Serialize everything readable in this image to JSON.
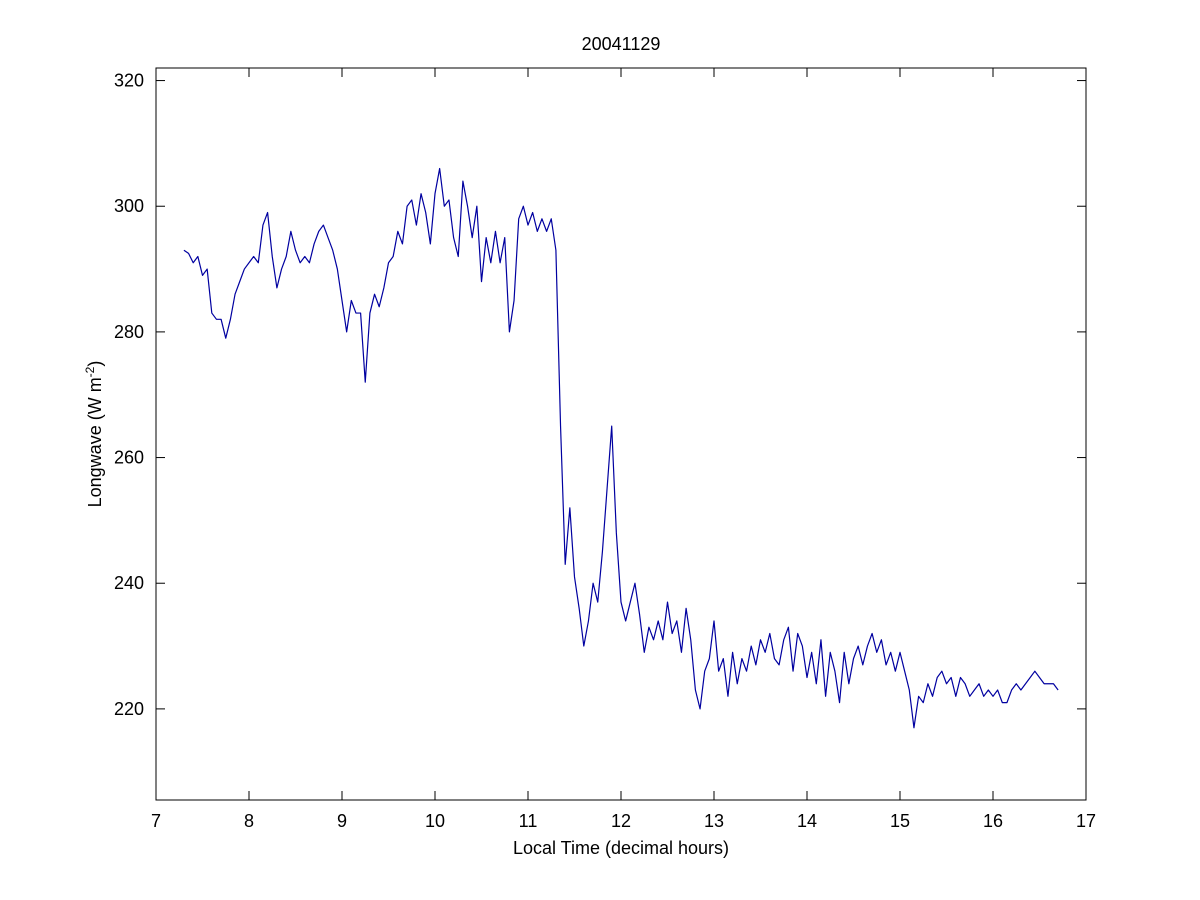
{
  "chart_data": {
    "type": "line",
    "title": "20041129",
    "xlabel": "Local Time (decimal hours)",
    "ylabel": [
      "Longwave (W m",
      "-2",
      ")"
    ],
    "xlim": [
      7,
      17
    ],
    "ylim": [
      205.5,
      322
    ],
    "xticks": [
      7,
      8,
      9,
      10,
      11,
      12,
      13,
      14,
      15,
      16,
      17
    ],
    "yticks": [
      220,
      240,
      260,
      280,
      300,
      320
    ],
    "grid": false,
    "series": [
      {
        "color": "#0000a0",
        "x": [
          7.3,
          7.35,
          7.4,
          7.45,
          7.5,
          7.55,
          7.6,
          7.65,
          7.7,
          7.75,
          7.8,
          7.85,
          7.9,
          7.95,
          8,
          8.05,
          8.1,
          8.15,
          8.2,
          8.25,
          8.3,
          8.35,
          8.4,
          8.45,
          8.5,
          8.55,
          8.6,
          8.65,
          8.7,
          8.75,
          8.8,
          8.85,
          8.9,
          8.95,
          9,
          9.05,
          9.1,
          9.15,
          9.2,
          9.25,
          9.3,
          9.35,
          9.4,
          9.45,
          9.5,
          9.55,
          9.6,
          9.65,
          9.7,
          9.75,
          9.8,
          9.85,
          9.9,
          9.95,
          10,
          10.05,
          10.1,
          10.15,
          10.2,
          10.25,
          10.3,
          10.35,
          10.4,
          10.45,
          10.5,
          10.55,
          10.6,
          10.65,
          10.7,
          10.75,
          10.8,
          10.85,
          10.9,
          10.95,
          11,
          11.05,
          11.1,
          11.15,
          11.2,
          11.25,
          11.3,
          11.35,
          11.4,
          11.45,
          11.5,
          11.55,
          11.6,
          11.65,
          11.7,
          11.75,
          11.8,
          11.85,
          11.9,
          11.95,
          12,
          12.05,
          12.1,
          12.15,
          12.2,
          12.25,
          12.3,
          12.35,
          12.4,
          12.45,
          12.5,
          12.55,
          12.6,
          12.65,
          12.7,
          12.75,
          12.8,
          12.85,
          12.9,
          12.95,
          13,
          13.05,
          13.1,
          13.15,
          13.2,
          13.25,
          13.3,
          13.35,
          13.4,
          13.45,
          13.5,
          13.55,
          13.6,
          13.65,
          13.7,
          13.75,
          13.8,
          13.85,
          13.9,
          13.95,
          14,
          14.05,
          14.1,
          14.15,
          14.2,
          14.25,
          14.3,
          14.35,
          14.4,
          14.45,
          14.5,
          14.55,
          14.6,
          14.65,
          14.7,
          14.75,
          14.8,
          14.85,
          14.9,
          14.95,
          15,
          15.05,
          15.1,
          15.15,
          15.2,
          15.25,
          15.3,
          15.35,
          15.4,
          15.45,
          15.5,
          15.55,
          15.6,
          15.65,
          15.7,
          15.75,
          15.8,
          15.85,
          15.9,
          15.95,
          16,
          16.05,
          16.1,
          16.15,
          16.2,
          16.25,
          16.3,
          16.35,
          16.4,
          16.45,
          16.5,
          16.55,
          16.6,
          16.65,
          16.7
        ],
        "values": [
          293,
          292.5,
          291,
          292,
          289,
          290,
          283,
          282,
          282,
          279,
          282,
          286,
          288,
          290,
          291,
          292,
          291,
          297,
          299,
          292,
          287,
          290,
          292,
          296,
          293,
          291,
          292,
          291,
          294,
          296,
          297,
          295,
          293,
          290,
          285,
          280,
          285,
          283,
          283,
          272,
          283,
          286,
          284,
          287,
          291,
          292,
          296,
          294,
          300,
          301,
          297,
          302,
          299,
          294,
          302,
          306,
          300,
          301,
          295,
          292,
          304,
          300,
          295,
          300,
          288,
          295,
          291,
          296,
          291,
          295,
          280,
          285,
          298,
          300,
          297,
          299,
          296,
          298,
          296,
          298,
          293,
          265,
          243,
          252,
          241,
          236,
          230,
          234,
          240,
          237,
          245,
          255,
          265,
          248,
          237,
          234,
          237,
          240,
          235,
          229,
          233,
          231,
          234,
          231,
          237,
          232,
          234,
          229,
          236,
          231,
          223,
          220,
          226,
          228,
          234,
          226,
          228,
          222,
          229,
          224,
          228,
          226,
          230,
          227,
          231,
          229,
          232,
          228,
          227,
          231,
          233,
          226,
          232,
          230,
          225,
          229,
          224,
          231,
          222,
          229,
          226,
          221,
          229,
          224,
          228,
          230,
          227,
          230,
          232,
          229,
          231,
          227,
          229,
          226,
          229,
          226,
          223,
          217,
          222,
          221,
          224,
          222,
          225,
          226,
          224,
          225,
          222,
          225,
          224,
          222,
          223,
          224,
          222,
          223,
          222,
          223,
          221,
          221,
          223,
          224,
          223,
          224,
          225,
          226,
          225,
          224,
          224,
          224,
          223
        ]
      }
    ]
  }
}
